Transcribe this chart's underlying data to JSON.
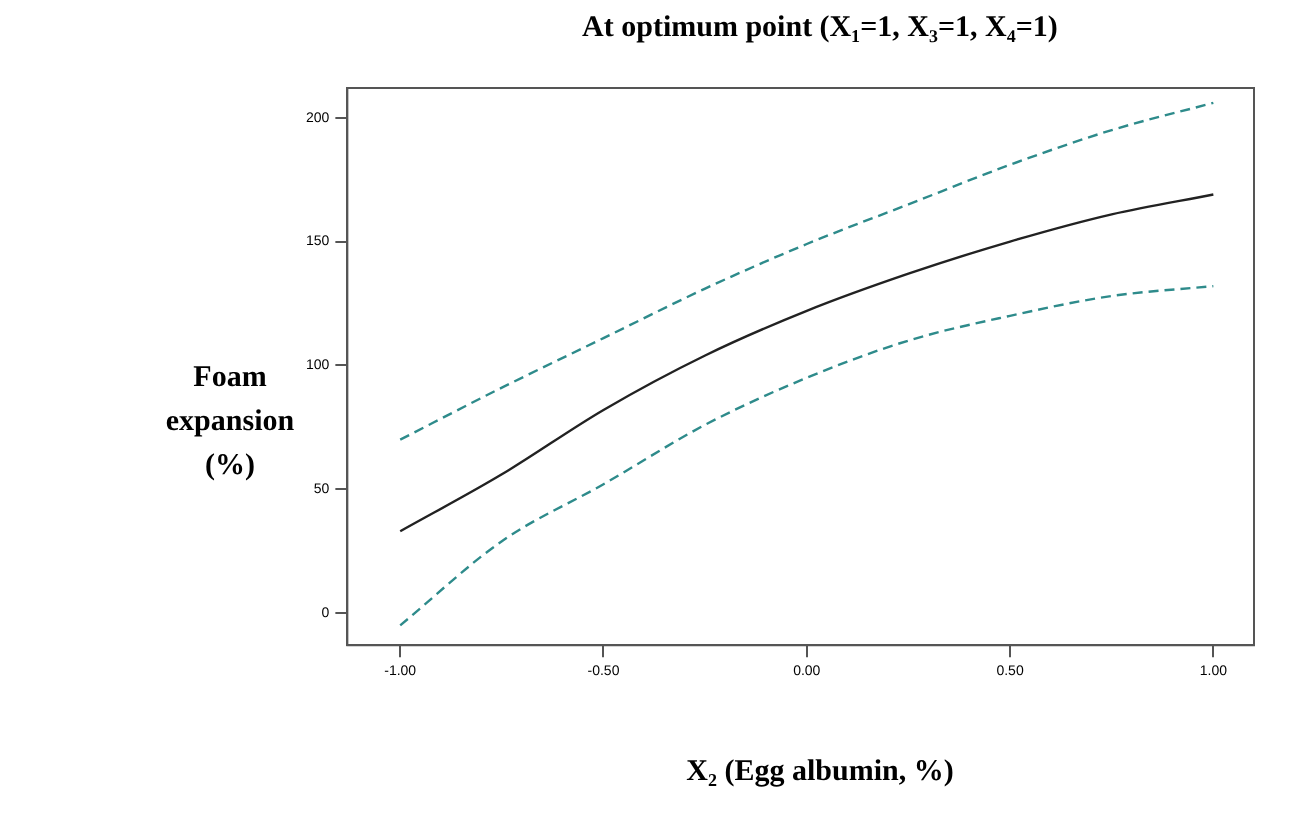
{
  "chart_data": {
    "type": "line",
    "title": "At optimum point (X₁=1, X₃=1, X₄=1)",
    "xlabel": "X₂ (Egg albumin, %)",
    "ylabel": "Foam\nexpansion\n(%)",
    "x": [
      -1,
      -0.75,
      -0.5,
      -0.25,
      0,
      0.25,
      0.5,
      0.75,
      1
    ],
    "series": [
      {
        "color": "#2e8b8b",
        "line_style": "dashed",
        "values": [
          70,
          91,
          111,
          131,
          149,
          165,
          181,
          195,
          206
        ]
      },
      {
        "color": "#222222",
        "line_style": "solid",
        "values": [
          33,
          56,
          82,
          104,
          122,
          137,
          150,
          161,
          169
        ]
      },
      {
        "color": "#2e8b8b",
        "line_style": "dashed",
        "values": [
          -5,
          29,
          52,
          76,
          95,
          110,
          120,
          128,
          132
        ]
      }
    ],
    "xlim": [
      -1.13,
      1.1
    ],
    "xticks": [
      {
        "value": -1,
        "label": "-1.00"
      },
      {
        "value": -0.5,
        "label": "-0.50"
      },
      {
        "value": 0,
        "label": "0.00"
      },
      {
        "value": 0.5,
        "label": "0.50"
      },
      {
        "value": 1,
        "label": "1.00"
      }
    ],
    "ylim": [
      -13,
      212
    ],
    "yticks": [
      0,
      50,
      100,
      150,
      200
    ],
    "grid": false,
    "legend": false,
    "marker": "none"
  }
}
